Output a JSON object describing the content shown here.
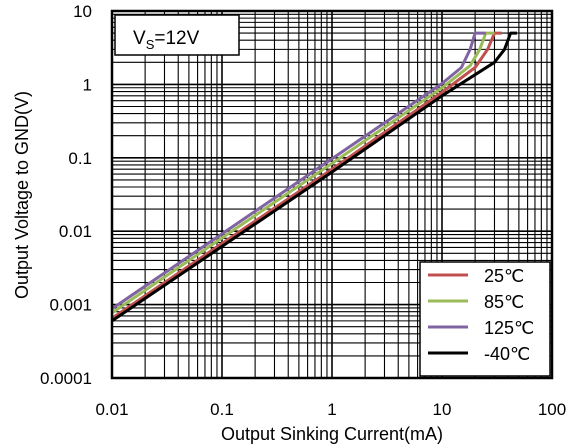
{
  "chart_data": {
    "type": "line",
    "x_scale": "log",
    "y_scale": "log",
    "xlim": [
      0.01,
      100
    ],
    "ylim": [
      0.0001,
      10
    ],
    "xlabel": "Output Sinking Current(mA)",
    "ylabel": "Output Voltage to GND(V)",
    "x_ticks": [
      "0.01",
      "0.1",
      "1",
      "10",
      "100"
    ],
    "y_ticks": [
      "0.0001",
      "0.001",
      "0.01",
      "0.1",
      "1",
      "10"
    ],
    "grid": true,
    "annotation": {
      "main": "V",
      "sub": "S",
      "rest": "=12V"
    },
    "legend_position": "bottom-right",
    "series": [
      {
        "name": "25℃",
        "color": "#c0504d",
        "points": [
          [
            0.01,
            0.00065
          ],
          [
            0.1,
            0.0068
          ],
          [
            1,
            0.07
          ],
          [
            10,
            0.78
          ],
          [
            20,
            1.7
          ],
          [
            26,
            3.0
          ],
          [
            30,
            5.0
          ],
          [
            35,
            5.0
          ]
        ]
      },
      {
        "name": "85℃",
        "color": "#9bbb59",
        "points": [
          [
            0.01,
            0.00077
          ],
          [
            0.1,
            0.0081
          ],
          [
            1,
            0.084
          ],
          [
            10,
            0.9
          ],
          [
            18,
            1.8
          ],
          [
            22,
            3.0
          ],
          [
            25,
            5.0
          ],
          [
            30,
            5.0
          ]
        ]
      },
      {
        "name": "125℃",
        "color": "#8064a2",
        "points": [
          [
            0.01,
            0.00088
          ],
          [
            0.1,
            0.0092
          ],
          [
            1,
            0.097
          ],
          [
            10,
            1.03
          ],
          [
            15,
            1.7
          ],
          [
            18,
            3.0
          ],
          [
            20,
            5.0
          ],
          [
            25,
            5.0
          ]
        ]
      },
      {
        "name": "-40℃",
        "color": "#000000",
        "points": [
          [
            0.01,
            0.0006
          ],
          [
            0.1,
            0.0062
          ],
          [
            1,
            0.064
          ],
          [
            10,
            0.7
          ],
          [
            30,
            2.0
          ],
          [
            37,
            3.0
          ],
          [
            42,
            5.0
          ],
          [
            48,
            5.0
          ]
        ]
      }
    ]
  }
}
